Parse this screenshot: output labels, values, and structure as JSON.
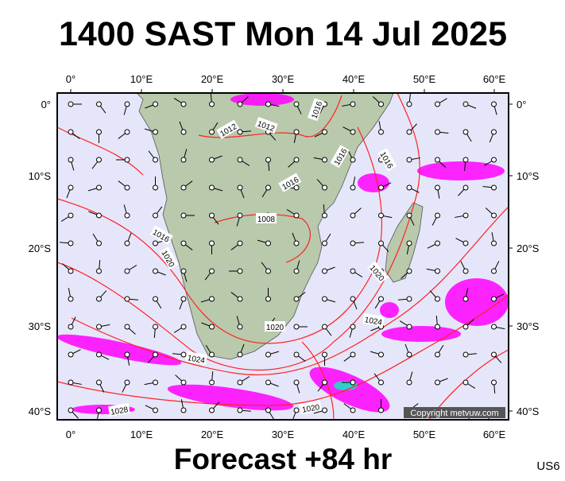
{
  "header": {
    "title": "1400 SAST Mon 14 Jul 2025"
  },
  "map": {
    "lon_labels": [
      "0°",
      "10°E",
      "20°E",
      "30°E",
      "40°E",
      "50°E",
      "60°E"
    ],
    "lat_labels": [
      "0°",
      "10°S",
      "20°S",
      "30°S",
      "40°S"
    ],
    "isobar_labels": [
      "1012",
      "1012",
      "1016",
      "1016",
      "1016",
      "1016",
      "1008",
      "1016",
      "1020",
      "1020",
      "1020",
      "1024",
      "1024",
      "1028",
      "1020"
    ],
    "copyright": "Copyright metvuw.com"
  },
  "footer": {
    "forecast": "Forecast +84 hr",
    "code": "US6"
  }
}
